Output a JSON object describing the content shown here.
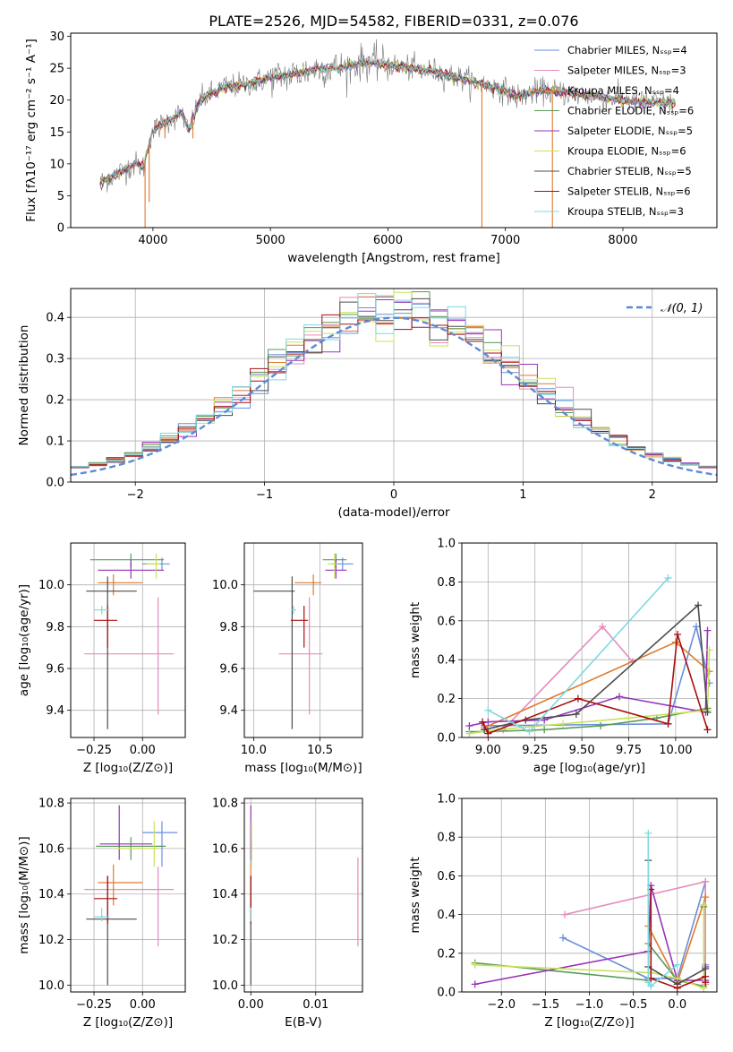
{
  "title": "PLATE=2526, MJD=54582, FIBERID=0331, z=0.076",
  "colors": {
    "c1": "#6a8fdc",
    "c2": "#e58bbc",
    "c3": "#e07a2d",
    "c4": "#5a9a5a",
    "c5": "#9933b8",
    "c6": "#c9e25a",
    "c7": "#4d4d4d",
    "c8": "#a81010",
    "c9": "#7fd8e0",
    "dash": "#5b8bd6"
  },
  "chart_data": [
    {
      "type": "line",
      "id": "spectrum",
      "title": "PLATE=2526, MJD=54582, FIBERID=0331, z=0.076",
      "xlabel": "wavelength [Angstrom, rest frame]",
      "ylabel": "Flux [fλ10⁻¹⁷ erg cm⁻² s⁻¹ A⁻¹]",
      "xlim": [
        3300,
        8800
      ],
      "ylim": [
        0,
        30.5
      ],
      "xticks": [
        4000,
        5000,
        6000,
        7000,
        8000
      ],
      "yticks": [
        0,
        5,
        10,
        15,
        20,
        25,
        30
      ],
      "legend_position": "top-right",
      "legend": [
        {
          "label": "Chabrier MILES, Nₛₛₚ=4",
          "color": "#6a8fdc"
        },
        {
          "label": "Salpeter MILES, Nₛₛₚ=3",
          "color": "#e58bbc"
        },
        {
          "label": "Kroupa MILES, Nₛₛₚ=4",
          "color": "#e07a2d"
        },
        {
          "label": "Chabrier ELODIE, Nₛₛₚ=6",
          "color": "#5a9a5a"
        },
        {
          "label": "Salpeter ELODIE, Nₛₛₚ=5",
          "color": "#9933b8"
        },
        {
          "label": "Kroupa ELODIE, Nₛₛₚ=6",
          "color": "#c9e25a"
        },
        {
          "label": "Chabrier STELIB, Nₛₛₚ=5",
          "color": "#4d4d4d"
        },
        {
          "label": "Salpeter STELIB, Nₛₛₚ=6",
          "color": "#a81010"
        },
        {
          "label": "Kroupa STELIB, Nₛₛₚ=3",
          "color": "#7fd8e0"
        }
      ],
      "continuum": [
        [
          3550,
          7
        ],
        [
          3700,
          8.5
        ],
        [
          3850,
          10
        ],
        [
          3920,
          9.5
        ],
        [
          3990,
          15
        ],
        [
          4100,
          16.5
        ],
        [
          4250,
          18
        ],
        [
          4300,
          15
        ],
        [
          4400,
          20
        ],
        [
          4600,
          22
        ],
        [
          4800,
          22.5
        ],
        [
          5000,
          23.5
        ],
        [
          5200,
          24
        ],
        [
          5400,
          25
        ],
        [
          5600,
          25
        ],
        [
          5800,
          26
        ],
        [
          6000,
          25.5
        ],
        [
          6200,
          25
        ],
        [
          6400,
          24.5
        ],
        [
          6600,
          23.5
        ],
        [
          6800,
          22.5
        ],
        [
          7000,
          21.5
        ],
        [
          7100,
          20.5
        ],
        [
          7300,
          21.5
        ],
        [
          7500,
          21.2
        ],
        [
          7800,
          20.5
        ],
        [
          8100,
          19.8
        ],
        [
          8400,
          19.5
        ]
      ],
      "spikes": [
        [
          3933,
          0
        ],
        [
          3968,
          4
        ],
        [
          4102,
          14
        ],
        [
          4340,
          14
        ],
        [
          6800,
          0
        ],
        [
          7400,
          0
        ]
      ]
    },
    {
      "type": "bar",
      "id": "residuals",
      "xlabel": "(data-model)/error",
      "ylabel": "Normed distribution",
      "xlim": [
        -2.5,
        2.5
      ],
      "ylim": [
        0,
        0.47
      ],
      "xticks": [
        -2,
        -1,
        0,
        1,
        2
      ],
      "yticks": [
        0.0,
        0.1,
        0.2,
        0.3,
        0.4
      ],
      "legend_position": "top-right",
      "legend": [
        {
          "label": "𝒩(0, 1)",
          "color": "#5b8bd6"
        }
      ],
      "bins": 36,
      "curve": "normal(0,1)"
    },
    {
      "type": "scatter",
      "id": "age_vs_Z",
      "xlabel": "Z [log₁₀(Z/Z⊙)]",
      "ylabel": "age  [log₁₀(age/yr)]",
      "xlim": [
        -0.37,
        0.22
      ],
      "ylim": [
        9.27,
        10.2
      ],
      "xticks": [
        -0.25,
        0.0
      ],
      "yticks": [
        9.4,
        9.6,
        9.8,
        10.0
      ],
      "points": [
        {
          "x": 0.1,
          "xerr": [
            0.1,
            0.04
          ],
          "y": 10.1,
          "yerr": [
            0.03,
            0.03
          ],
          "color": "#6a8fdc"
        },
        {
          "x": 0.08,
          "xerr": [
            0.38,
            0.08
          ],
          "y": 9.67,
          "yerr": [
            0.29,
            0.27
          ],
          "color": "#e58bbc"
        },
        {
          "x": -0.15,
          "xerr": [
            0.08,
            0.15
          ],
          "y": 10.01,
          "yerr": [
            0.06,
            0.04
          ],
          "color": "#e07a2d"
        },
        {
          "x": -0.06,
          "xerr": [
            0.21,
            0.17
          ],
          "y": 10.12,
          "yerr": [
            0.04,
            0.03
          ],
          "color": "#5a9a5a"
        },
        {
          "x": -0.06,
          "xerr": [
            0.17,
            0.17
          ],
          "y": 10.07,
          "yerr": [
            0.04,
            0.05
          ],
          "color": "#9933b8"
        },
        {
          "x": 0.07,
          "xerr": [
            0.05,
            0.02
          ],
          "y": 10.1,
          "yerr": [
            0.07,
            0.05
          ],
          "color": "#c9e25a"
        },
        {
          "x": -0.18,
          "xerr": [
            0.11,
            0.15
          ],
          "y": 9.97,
          "yerr": [
            0.66,
            0.07
          ],
          "color": "#4d4d4d"
        },
        {
          "x": -0.18,
          "xerr": [
            0.07,
            0.05
          ],
          "y": 9.83,
          "yerr": [
            0.13,
            0.07
          ],
          "color": "#a81010"
        },
        {
          "x": -0.21,
          "xerr": [
            0.04,
            0.04
          ],
          "y": 9.88,
          "yerr": [
            0.02,
            0.02
          ],
          "color": "#7fd8e0"
        }
      ]
    },
    {
      "type": "scatter",
      "id": "age_vs_mass",
      "xlabel": "mass [log₁₀(M/M⊙)]",
      "ylabel": "",
      "xlim": [
        9.93,
        10.82
      ],
      "ylim": [
        9.27,
        10.2
      ],
      "xticks": [
        10.0,
        10.5
      ],
      "yticks": [
        9.4,
        9.6,
        9.8,
        10.0
      ],
      "points": [
        {
          "x": 10.67,
          "xerr": [
            0.08,
            0.08
          ],
          "y": 10.1,
          "yerr": [
            0.03,
            0.03
          ],
          "color": "#6a8fdc"
        },
        {
          "x": 10.42,
          "xerr": [
            0.23,
            0.1
          ],
          "y": 9.67,
          "yerr": [
            0.29,
            0.27
          ],
          "color": "#e58bbc"
        },
        {
          "x": 10.45,
          "xerr": [
            0.14,
            0.06
          ],
          "y": 10.01,
          "yerr": [
            0.06,
            0.04
          ],
          "color": "#e07a2d"
        },
        {
          "x": 10.62,
          "xerr": [
            0.1,
            0.08
          ],
          "y": 10.12,
          "yerr": [
            0.04,
            0.03
          ],
          "color": "#5a9a5a"
        },
        {
          "x": 10.62,
          "xerr": [
            0.08,
            0.08
          ],
          "y": 10.07,
          "yerr": [
            0.04,
            0.05
          ],
          "color": "#9933b8"
        },
        {
          "x": 10.61,
          "xerr": [
            0.05,
            0.02
          ],
          "y": 10.1,
          "yerr": [
            0.07,
            0.05
          ],
          "color": "#c9e25a"
        },
        {
          "x": 10.29,
          "xerr": [
            0.29,
            0.02
          ],
          "y": 9.97,
          "yerr": [
            0.66,
            0.07
          ],
          "color": "#4d4d4d"
        },
        {
          "x": 10.38,
          "xerr": [
            0.1,
            0.03
          ],
          "y": 9.83,
          "yerr": [
            0.13,
            0.07
          ],
          "color": "#a81010"
        },
        {
          "x": 10.3,
          "xerr": [
            0.02,
            0.02
          ],
          "y": 9.88,
          "yerr": [
            0.02,
            0.02
          ],
          "color": "#7fd8e0"
        }
      ]
    },
    {
      "type": "line",
      "id": "massweight_vs_age",
      "xlabel": "age  [log₁₀(age/yr)]",
      "ylabel": "mass weight",
      "xlim": [
        8.86,
        10.22
      ],
      "ylim": [
        0,
        1.0
      ],
      "xticks": [
        9.0,
        9.25,
        9.5,
        9.75,
        10.0
      ],
      "yticks": [
        0.0,
        0.2,
        0.4,
        0.6,
        0.8,
        1.0
      ],
      "series": [
        {
          "color": "#6a8fdc",
          "x": [
            8.98,
            9.96,
            10.11,
            10.18
          ],
          "y": [
            0.06,
            0.07,
            0.57,
            0.28
          ]
        },
        {
          "color": "#e58bbc",
          "x": [
            9.08,
            9.61,
            9.77
          ],
          "y": [
            0.04,
            0.57,
            0.39
          ]
        },
        {
          "color": "#e07a2d",
          "x": [
            8.98,
            10.0,
            10.18
          ],
          "y": [
            0.05,
            0.49,
            0.34
          ]
        },
        {
          "color": "#5a9a5a",
          "x": [
            8.9,
            9.0,
            9.3,
            9.6,
            9.9,
            10.17
          ],
          "y": [
            0.03,
            0.03,
            0.04,
            0.06,
            0.1,
            0.15
          ]
        },
        {
          "color": "#9933b8",
          "x": [
            8.9,
            9.0,
            9.3,
            9.7,
            10.16,
            10.17
          ],
          "y": [
            0.06,
            0.08,
            0.09,
            0.21,
            0.13,
            0.55
          ]
        },
        {
          "color": "#c9e25a",
          "x": [
            8.9,
            9.05,
            9.4,
            9.75,
            10.17,
            10.18
          ],
          "y": [
            0.02,
            0.04,
            0.07,
            0.1,
            0.14,
            0.45
          ]
        },
        {
          "color": "#4d4d4d",
          "x": [
            8.98,
            9.2,
            9.47,
            10.12,
            10.17
          ],
          "y": [
            0.04,
            0.09,
            0.12,
            0.68,
            0.13
          ]
        },
        {
          "color": "#a81010",
          "x": [
            8.97,
            9.0,
            9.48,
            9.96,
            10.01,
            10.17
          ],
          "y": [
            0.08,
            0.02,
            0.2,
            0.07,
            0.53,
            0.04
          ]
        },
        {
          "color": "#7fd8e0",
          "x": [
            9.0,
            9.22,
            9.96
          ],
          "y": [
            0.14,
            0.03,
            0.82
          ]
        }
      ]
    },
    {
      "type": "scatter",
      "id": "mass_vs_Z",
      "xlabel": "Z [log₁₀(Z/Z⊙)]",
      "ylabel": "mass [log₁₀(M/M⊙)]",
      "xlim": [
        -0.37,
        0.22
      ],
      "ylim": [
        9.97,
        10.82
      ],
      "xticks": [
        -0.25,
        0.0
      ],
      "yticks": [
        10.0,
        10.2,
        10.4,
        10.6,
        10.8
      ],
      "points": [
        {
          "x": 0.1,
          "xerr": [
            0.1,
            0.08
          ],
          "y": 10.67,
          "yerr": [
            0.15,
            0.05
          ],
          "color": "#6a8fdc"
        },
        {
          "x": 0.08,
          "xerr": [
            0.38,
            0.08
          ],
          "y": 10.42,
          "yerr": [
            0.25,
            0.1
          ],
          "color": "#e58bbc"
        },
        {
          "x": -0.15,
          "xerr": [
            0.08,
            0.15
          ],
          "y": 10.45,
          "yerr": [
            0.1,
            0.08
          ],
          "color": "#e07a2d"
        },
        {
          "x": -0.06,
          "xerr": [
            0.18,
            0.18
          ],
          "y": 10.61,
          "yerr": [
            0.06,
            0.04
          ],
          "color": "#5a9a5a"
        },
        {
          "x": -0.12,
          "xerr": [
            0.1,
            0.17
          ],
          "y": 10.62,
          "yerr": [
            0.07,
            0.17
          ],
          "color": "#9933b8"
        },
        {
          "x": 0.06,
          "xerr": [
            0.2,
            0.02
          ],
          "y": 10.6,
          "yerr": [
            0.08,
            0.12
          ],
          "color": "#c9e25a"
        },
        {
          "x": -0.18,
          "xerr": [
            0.11,
            0.15
          ],
          "y": 10.29,
          "yerr": [
            0.29,
            0.19
          ],
          "color": "#4d4d4d"
        },
        {
          "x": -0.18,
          "xerr": [
            0.07,
            0.05
          ],
          "y": 10.38,
          "yerr": [
            0.11,
            0.1
          ],
          "color": "#a81010"
        },
        {
          "x": -0.21,
          "xerr": [
            0.04,
            0.04
          ],
          "y": 10.3,
          "yerr": [
            0.02,
            0.04
          ],
          "color": "#7fd8e0"
        }
      ]
    },
    {
      "type": "scatter",
      "id": "mass_vs_EBV",
      "xlabel": "E(B-V)",
      "ylabel": "",
      "xlim": [
        -0.001,
        0.0172
      ],
      "ylim": [
        9.97,
        10.82
      ],
      "xticks": [
        0.0,
        0.01
      ],
      "xticklabels": [
        "0.00",
        "0.01"
      ],
      "yticks": [
        10.0,
        10.2,
        10.4,
        10.6,
        10.8
      ],
      "points": [
        {
          "x": 0.0,
          "xerr": [
            0,
            0
          ],
          "y": 10.67,
          "yerr": [
            0.15,
            0.05
          ],
          "color": "#6a8fdc"
        },
        {
          "x": 0.0165,
          "xerr": [
            0,
            0
          ],
          "y": 10.42,
          "yerr": [
            0.25,
            0.14
          ],
          "color": "#e58bbc"
        },
        {
          "x": 0.0,
          "xerr": [
            0,
            0
          ],
          "y": 10.45,
          "yerr": [
            0.1,
            0.08
          ],
          "color": "#e07a2d"
        },
        {
          "x": 0.0001,
          "xerr": [
            0,
            0
          ],
          "y": 10.61,
          "yerr": [
            0.06,
            0.04
          ],
          "color": "#5a9a5a"
        },
        {
          "x": 0.0,
          "xerr": [
            0,
            0
          ],
          "y": 10.62,
          "yerr": [
            0.07,
            0.17
          ],
          "color": "#9933b8"
        },
        {
          "x": 0.0001,
          "xerr": [
            0,
            0
          ],
          "y": 10.6,
          "yerr": [
            0.08,
            0.12
          ],
          "color": "#c9e25a"
        },
        {
          "x": 0.0,
          "xerr": [
            0,
            0
          ],
          "y": 10.29,
          "yerr": [
            0.29,
            0.19
          ],
          "color": "#4d4d4d"
        },
        {
          "x": 0.0,
          "xerr": [
            0,
            0
          ],
          "y": 10.38,
          "yerr": [
            0.11,
            0.1
          ],
          "color": "#a81010"
        },
        {
          "x": 0.0,
          "xerr": [
            0,
            0
          ],
          "y": 10.3,
          "yerr": [
            0.02,
            0.04
          ],
          "color": "#7fd8e0"
        }
      ]
    },
    {
      "type": "line",
      "id": "massweight_vs_Z",
      "xlabel": "Z [log₁₀(Z/Z⊙)]",
      "ylabel": "mass weight",
      "xlim": [
        -2.45,
        0.45
      ],
      "ylim": [
        0,
        1.0
      ],
      "xticks": [
        -2.0,
        -1.5,
        -1.0,
        -0.5,
        0.0
      ],
      "yticks": [
        0.0,
        0.2,
        0.4,
        0.6,
        0.8,
        1.0
      ],
      "series": [
        {
          "color": "#6a8fdc",
          "x": [
            -1.3,
            -0.33,
            0.0,
            0.32,
            0.32
          ],
          "y": [
            0.28,
            0.07,
            0.07,
            0.57,
            0.14
          ]
        },
        {
          "color": "#e58bbc",
          "x": [
            -1.28,
            0.32,
            0.32
          ],
          "y": [
            0.4,
            0.57,
            0.04
          ]
        },
        {
          "color": "#e07a2d",
          "x": [
            -0.33,
            0.0,
            0.32
          ],
          "y": [
            0.34,
            0.05,
            0.49
          ]
        },
        {
          "color": "#5a9a5a",
          "x": [
            -2.3,
            -0.33,
            -0.33,
            0.0,
            0.3,
            0.3
          ],
          "y": [
            0.15,
            0.06,
            0.25,
            0.06,
            0.03,
            0.44
          ]
        },
        {
          "color": "#9933b8",
          "x": [
            -2.3,
            -0.33,
            -0.3,
            0.0,
            0.32,
            0.32
          ],
          "y": [
            0.04,
            0.21,
            0.55,
            0.06,
            0.06,
            0.13
          ]
        },
        {
          "color": "#c9e25a",
          "x": [
            -2.3,
            -0.33,
            -0.3,
            0.0,
            0.3,
            0.3
          ],
          "y": [
            0.14,
            0.1,
            0.1,
            0.07,
            0.02,
            0.45
          ]
        },
        {
          "color": "#4d4d4d",
          "x": [
            -0.33,
            -0.33,
            0.0,
            0.32
          ],
          "y": [
            0.68,
            0.13,
            0.04,
            0.12
          ]
        },
        {
          "color": "#a81010",
          "x": [
            -0.3,
            -0.3,
            0.0,
            0.32,
            0.32
          ],
          "y": [
            0.53,
            0.07,
            0.02,
            0.08,
            0.05
          ]
        },
        {
          "color": "#7fd8e0",
          "x": [
            -0.33,
            -0.33,
            -0.3,
            0.0
          ],
          "y": [
            0.82,
            0.05,
            0.03,
            0.14
          ]
        }
      ]
    }
  ]
}
